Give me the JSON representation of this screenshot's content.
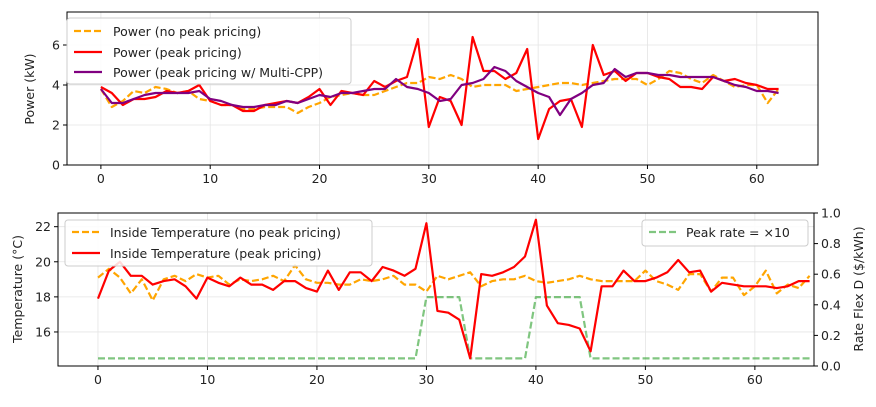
{
  "chart_data": [
    {
      "type": "line",
      "title": "",
      "xlabel": "",
      "ylabel": "Power (kW)",
      "xlim": [
        -3.1,
        65.6
      ],
      "ylim": [
        0,
        7.65
      ],
      "xticks": [
        0,
        10,
        20,
        30,
        40,
        50,
        60
      ],
      "yticks": [
        0,
        2,
        4,
        6
      ],
      "grid": true,
      "legend_position": "top-left",
      "series": [
        {
          "name": "Power (no peak pricing)",
          "color": "#ffa500",
          "style": "dashed",
          "values": [
            3.8,
            2.9,
            3.2,
            3.7,
            3.6,
            3.9,
            3.8,
            3.6,
            3.7,
            3.3,
            3.2,
            3.0,
            3.0,
            2.8,
            2.8,
            2.9,
            2.9,
            2.9,
            2.6,
            2.9,
            3.1,
            3.4,
            3.5,
            3.6,
            3.5,
            3.5,
            3.7,
            3.9,
            4.1,
            4.1,
            4.4,
            4.3,
            4.5,
            4.3,
            3.9,
            4.0,
            4.0,
            4.0,
            3.7,
            3.8,
            3.9,
            4.0,
            4.1,
            4.1,
            4.0,
            4.1,
            4.2,
            4.3,
            4.3,
            4.3,
            4.0,
            4.3,
            4.7,
            4.6,
            4.3,
            4.1,
            4.5,
            4.2,
            3.9,
            4.0,
            4.0,
            3.1,
            3.8
          ]
        },
        {
          "name": "Power (peak pricing)",
          "color": "#ff0000",
          "style": "solid",
          "values": [
            3.9,
            3.6,
            3.0,
            3.3,
            3.3,
            3.4,
            3.7,
            3.6,
            3.7,
            4.0,
            3.2,
            3.0,
            3.0,
            2.7,
            2.7,
            3.0,
            3.1,
            3.2,
            3.1,
            3.4,
            3.8,
            3.0,
            3.7,
            3.6,
            3.5,
            4.2,
            3.9,
            4.2,
            4.4,
            6.3,
            1.9,
            3.4,
            3.2,
            2.0,
            6.4,
            4.7,
            4.7,
            4.3,
            4.6,
            5.8,
            1.3,
            2.8,
            3.2,
            3.3,
            1.9,
            6.0,
            4.5,
            4.7,
            4.2,
            4.6,
            4.6,
            4.4,
            4.3,
            3.9,
            3.9,
            3.8,
            4.4,
            4.2,
            4.3,
            4.1,
            4.0,
            3.8,
            3.8
          ]
        },
        {
          "name": "Power (peak pricing w/ Multi-CPP)",
          "color": "#800080",
          "style": "solid",
          "values": [
            3.8,
            3.1,
            3.1,
            3.3,
            3.5,
            3.6,
            3.6,
            3.6,
            3.6,
            3.7,
            3.3,
            3.2,
            3.0,
            2.9,
            2.9,
            3.0,
            3.0,
            3.2,
            3.1,
            3.3,
            3.5,
            3.4,
            3.6,
            3.6,
            3.7,
            3.8,
            3.8,
            4.3,
            3.9,
            3.8,
            3.6,
            3.2,
            3.3,
            4.0,
            4.1,
            4.3,
            4.9,
            4.7,
            4.2,
            3.9,
            3.6,
            3.4,
            2.5,
            3.3,
            3.6,
            4.0,
            4.1,
            4.8,
            4.4,
            4.6,
            4.6,
            4.5,
            4.5,
            4.4,
            4.4,
            4.4,
            4.4,
            4.2,
            4.0,
            3.9,
            3.7,
            3.7,
            3.6
          ]
        }
      ]
    },
    {
      "type": "line",
      "title": "",
      "xlabel": "",
      "ylabel": "Temperature (°C)",
      "y2label": "Rate Flex D ($/kWh)",
      "xlim": [
        -3.65,
        65.4
      ],
      "ylim": [
        14.06,
        22.78
      ],
      "y2lim": [
        0,
        1
      ],
      "xticks": [
        0,
        10,
        20,
        30,
        40,
        50,
        60
      ],
      "yticks": [
        16,
        18,
        20,
        22
      ],
      "y2ticks": [
        "0.0",
        "0.2",
        "0.4",
        "0.6",
        "0.8",
        "1.0"
      ],
      "grid": true,
      "legend_position": "top-left",
      "legend2_position": "top-right",
      "series": [
        {
          "name": "Inside Temperature (no peak pricing)",
          "color": "#ffa500",
          "style": "dashed",
          "axis": "left",
          "values": [
            19.1,
            19.6,
            19.1,
            18.2,
            19.0,
            17.8,
            19.0,
            19.2,
            18.9,
            19.3,
            19.1,
            19.2,
            18.7,
            19.0,
            18.9,
            19.0,
            19.2,
            18.9,
            19.8,
            19.0,
            18.8,
            18.8,
            18.7,
            18.7,
            19.0,
            18.9,
            19.0,
            19.2,
            18.7,
            18.7,
            18.3,
            19.2,
            19.0,
            19.2,
            19.4,
            18.6,
            18.9,
            19.0,
            19.0,
            19.2,
            18.9,
            18.8,
            18.9,
            19.0,
            19.2,
            19.0,
            18.9,
            18.9,
            18.9,
            18.9,
            19.5,
            18.9,
            18.7,
            18.4,
            19.3,
            19.3,
            18.3,
            19.1,
            19.1,
            18.1,
            18.6,
            19.5,
            18.2,
            18.7,
            18.5,
            19.2
          ]
        },
        {
          "name": "Inside Temperature (peak pricing)",
          "color": "#ff0000",
          "style": "solid",
          "axis": "left",
          "values": [
            17.9,
            19.5,
            20.0,
            19.2,
            19.2,
            18.7,
            18.9,
            19.0,
            18.6,
            17.9,
            19.1,
            18.8,
            18.6,
            19.1,
            18.7,
            18.7,
            18.4,
            18.9,
            18.9,
            18.5,
            18.3,
            19.5,
            18.4,
            19.4,
            19.4,
            18.9,
            19.7,
            19.5,
            19.2,
            19.6,
            22.2,
            17.2,
            17.1,
            16.7,
            14.5,
            19.3,
            19.2,
            19.4,
            19.7,
            20.3,
            22.4,
            17.5,
            16.5,
            16.4,
            16.2,
            14.9,
            18.6,
            18.6,
            19.5,
            18.9,
            18.9,
            19.1,
            19.4,
            20.1,
            19.4,
            19.5,
            18.3,
            18.8,
            18.7,
            18.6,
            18.6,
            18.6,
            18.5,
            18.6,
            18.9,
            18.9
          ]
        },
        {
          "name": "Peak rate = ×10",
          "color": "#2ca02c",
          "style": "dashed",
          "axis": "right",
          "values": [
            0.05,
            0.05,
            0.05,
            0.05,
            0.05,
            0.05,
            0.05,
            0.05,
            0.05,
            0.05,
            0.05,
            0.05,
            0.05,
            0.05,
            0.05,
            0.05,
            0.05,
            0.05,
            0.05,
            0.05,
            0.05,
            0.05,
            0.05,
            0.05,
            0.05,
            0.05,
            0.05,
            0.05,
            0.05,
            0.05,
            0.45,
            0.45,
            0.45,
            0.45,
            0.05,
            0.05,
            0.05,
            0.05,
            0.05,
            0.05,
            0.45,
            0.45,
            0.45,
            0.45,
            0.45,
            0.05,
            0.05,
            0.05,
            0.05,
            0.05,
            0.05,
            0.05,
            0.05,
            0.05,
            0.05,
            0.05,
            0.05,
            0.05,
            0.05,
            0.05,
            0.05,
            0.05,
            0.05,
            0.05,
            0.05,
            0.05
          ]
        }
      ]
    }
  ]
}
